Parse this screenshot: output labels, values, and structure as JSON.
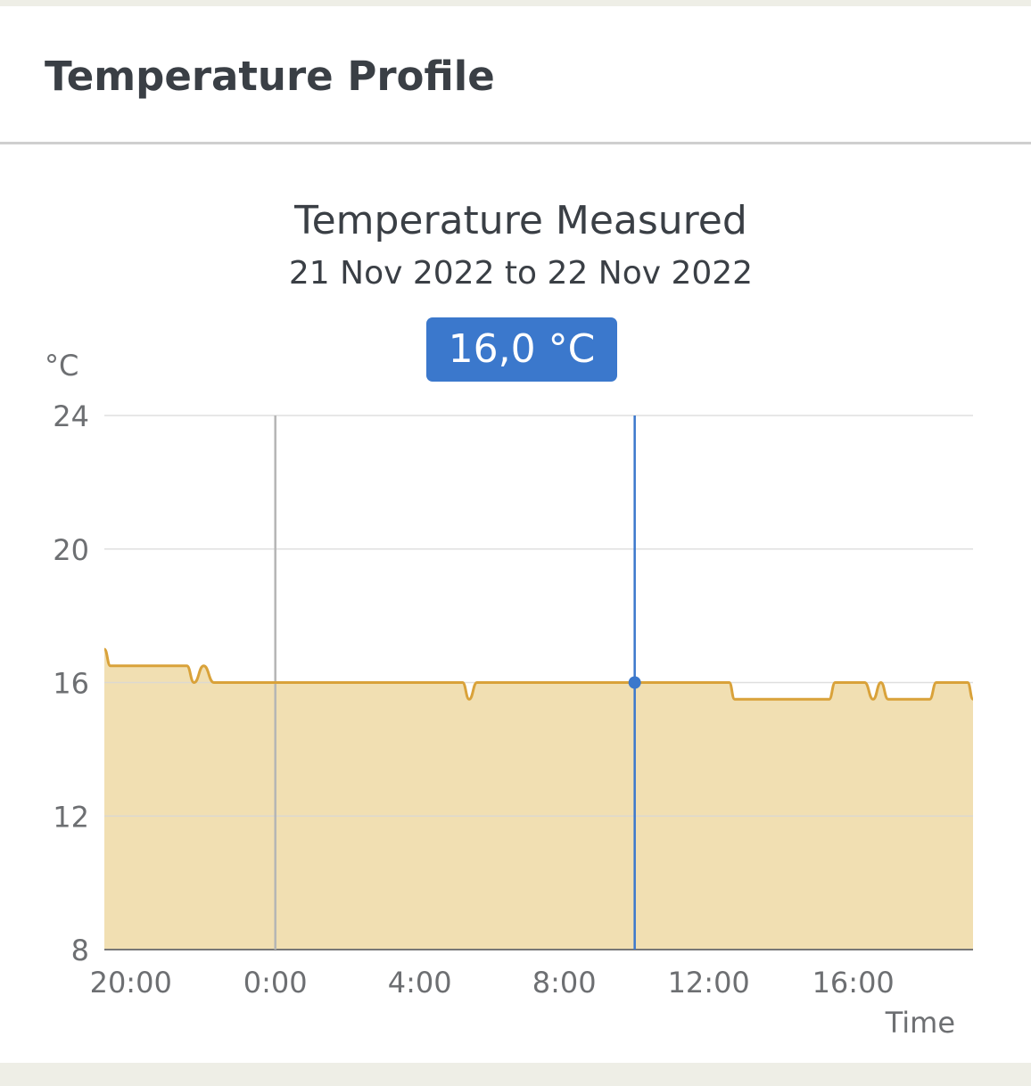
{
  "card": {
    "title": "Temperature Profile"
  },
  "tooltip": {
    "value": "16,0 °C"
  },
  "chart_data": {
    "type": "area",
    "title": "Temperature Measured",
    "subtitle": "21 Nov 2022 to 22 Nov 2022",
    "ylabel": "°C",
    "xlabel": "Time",
    "ylim": [
      8,
      24
    ],
    "yticks": [
      "24",
      "20",
      "16",
      "12",
      "8"
    ],
    "xlim": [
      "2022-11-21 19:16",
      "2022-11-22 19:19"
    ],
    "xticks": [
      {
        "t": "2022-11-21 20:00",
        "label": "20:00"
      },
      {
        "t": "2022-11-22 00:00",
        "label": "0:00"
      },
      {
        "t": "2022-11-22 04:00",
        "label": "4:00"
      },
      {
        "t": "2022-11-22 08:00",
        "label": "8:00"
      },
      {
        "t": "2022-11-22 12:00",
        "label": "12:00"
      },
      {
        "t": "2022-11-22 16:00",
        "label": "16:00"
      }
    ],
    "grid": true,
    "day_marker": "2022-11-22 00:00",
    "cursor": {
      "t": "2022-11-22 09:57",
      "value": 16.0
    },
    "colors": {
      "line": "#d9a23a",
      "fill": "#f1dfb2",
      "cursor": "#3b78cc",
      "day_marker": "#b5b5b5"
    },
    "series": [
      {
        "points": [
          [
            "2022-11-21 19:16",
            17.0
          ],
          [
            "2022-11-21 19:26",
            16.5
          ],
          [
            "2022-11-21 21:33",
            16.5
          ],
          [
            "2022-11-21 21:45",
            16.0
          ],
          [
            "2022-11-21 22:01",
            16.5
          ],
          [
            "2022-11-21 22:18",
            16.0
          ],
          [
            "2022-11-22 05:11",
            16.0
          ],
          [
            "2022-11-22 05:22",
            15.5
          ],
          [
            "2022-11-22 05:35",
            16.0
          ],
          [
            "2022-11-22 12:34",
            16.0
          ],
          [
            "2022-11-22 12:43",
            15.5
          ],
          [
            "2022-11-22 15:20",
            15.5
          ],
          [
            "2022-11-22 15:30",
            16.0
          ],
          [
            "2022-11-22 16:19",
            16.0
          ],
          [
            "2022-11-22 16:33",
            15.5
          ],
          [
            "2022-11-22 16:46",
            16.0
          ],
          [
            "2022-11-22 16:58",
            15.5
          ],
          [
            "2022-11-22 18:07",
            15.5
          ],
          [
            "2022-11-22 18:18",
            16.0
          ],
          [
            "2022-11-22 19:10",
            16.0
          ],
          [
            "2022-11-22 19:19",
            15.5
          ]
        ]
      }
    ]
  }
}
